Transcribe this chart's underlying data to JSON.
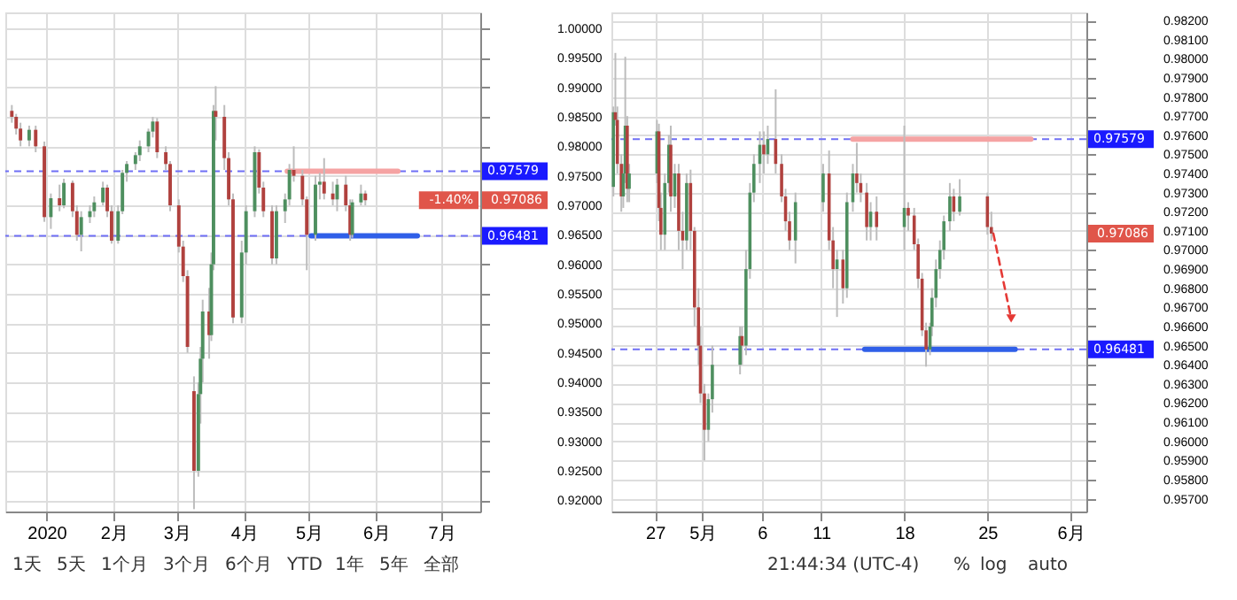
{
  "chart_data": [
    {
      "type": "candlestick",
      "x": [
        "2019-12-16",
        "2019-12-18",
        "2019-12-20",
        "2019-12-24",
        "2019-12-27",
        "2019-12-31",
        "2020-01-03",
        "2020-01-07",
        "2020-01-09",
        "2020-01-13",
        "2020-01-15",
        "2020-01-17",
        "2020-01-21",
        "2020-01-23",
        "2020-01-27",
        "2020-01-29",
        "2020-01-31",
        "2020-02-03",
        "2020-02-05",
        "2020-02-07",
        "2020-02-11",
        "2020-02-13",
        "2020-02-17",
        "2020-02-19",
        "2020-02-21",
        "2020-02-25",
        "2020-02-27",
        "2020-03-02",
        "2020-03-04",
        "2020-03-06",
        "2020-03-09",
        "2020-03-11",
        "2020-03-12",
        "2020-03-13",
        "2020-03-16",
        "2020-03-17",
        "2020-03-18",
        "2020-03-19",
        "2020-03-23",
        "2020-03-25",
        "2020-03-27",
        "2020-03-31",
        "2020-04-02",
        "2020-04-06",
        "2020-04-08",
        "2020-04-10",
        "2020-04-14",
        "2020-04-16",
        "2020-04-20",
        "2020-04-22",
        "2020-04-24",
        "2020-04-28",
        "2020-04-30",
        "2020-05-04",
        "2020-05-06",
        "2020-05-08",
        "2020-05-12",
        "2020-05-14",
        "2020-05-18",
        "2020-05-20",
        "2020-05-21",
        "2020-05-25",
        "2020-05-27"
      ],
      "ohlc": [
        [
          0.986,
          0.987,
          0.984,
          0.985
        ],
        [
          0.985,
          0.9855,
          0.982,
          0.983
        ],
        [
          0.983,
          0.984,
          0.98,
          0.981
        ],
        [
          0.981,
          0.9835,
          0.98,
          0.9828
        ],
        [
          0.9828,
          0.9835,
          0.979,
          0.98
        ],
        [
          0.98,
          0.9808,
          0.9672,
          0.968
        ],
        [
          0.968,
          0.972,
          0.966,
          0.9712
        ],
        [
          0.9712,
          0.9735,
          0.969,
          0.97
        ],
        [
          0.97,
          0.9745,
          0.9695,
          0.9738
        ],
        [
          0.9738,
          0.9742,
          0.968,
          0.969
        ],
        [
          0.969,
          0.97,
          0.964,
          0.965
        ],
        [
          0.965,
          0.969,
          0.9622,
          0.968
        ],
        [
          0.968,
          0.97,
          0.967,
          0.969
        ],
        [
          0.969,
          0.9715,
          0.968,
          0.9705
        ],
        [
          0.9705,
          0.974,
          0.97,
          0.973
        ],
        [
          0.973,
          0.9735,
          0.968,
          0.969
        ],
        [
          0.969,
          0.97,
          0.9635,
          0.964
        ],
        [
          0.964,
          0.97,
          0.9635,
          0.969
        ],
        [
          0.969,
          0.976,
          0.9685,
          0.9755
        ],
        [
          0.9755,
          0.9775,
          0.974,
          0.977
        ],
        [
          0.977,
          0.979,
          0.976,
          0.9785
        ],
        [
          0.9785,
          0.981,
          0.9775,
          0.98
        ],
        [
          0.98,
          0.983,
          0.979,
          0.9825
        ],
        [
          0.9825,
          0.985,
          0.9815,
          0.9842
        ],
        [
          0.9842,
          0.9848,
          0.978,
          0.979
        ],
        [
          0.979,
          0.98,
          0.976,
          0.977
        ],
        [
          0.977,
          0.9775,
          0.969,
          0.97
        ],
        [
          0.97,
          0.971,
          0.962,
          0.963
        ],
        [
          0.963,
          0.964,
          0.957,
          0.958
        ],
        [
          0.958,
          0.959,
          0.945,
          0.946
        ],
        [
          0.9385,
          0.941,
          0.9185,
          0.925
        ],
        [
          0.925,
          0.94,
          0.924,
          0.938
        ],
        [
          0.938,
          0.946,
          0.933,
          0.944
        ],
        [
          0.944,
          0.954,
          0.94,
          0.952
        ],
        [
          0.952,
          0.956,
          0.944,
          0.948
        ],
        [
          0.948,
          0.962,
          0.947,
          0.96
        ],
        [
          0.96,
          0.987,
          0.959,
          0.986
        ],
        [
          0.986,
          0.9902,
          0.981,
          0.985
        ],
        [
          0.985,
          0.987,
          0.976,
          0.978
        ],
        [
          0.978,
          0.979,
          0.97,
          0.971
        ],
        [
          0.971,
          0.972,
          0.95,
          0.951
        ],
        [
          0.951,
          0.964,
          0.95,
          0.962
        ],
        [
          0.962,
          0.97,
          0.96,
          0.969
        ],
        [
          0.969,
          0.98,
          0.968,
          0.979
        ],
        [
          0.979,
          0.9795,
          0.972,
          0.973
        ],
        [
          0.973,
          0.974,
          0.968,
          0.969
        ],
        [
          0.969,
          0.97,
          0.96,
          0.961
        ],
        [
          0.961,
          0.97,
          0.96,
          0.969
        ],
        [
          0.969,
          0.972,
          0.967,
          0.971
        ],
        [
          0.971,
          0.977,
          0.97,
          0.976
        ],
        [
          0.976,
          0.98,
          0.974,
          0.975
        ],
        [
          0.975,
          0.976,
          0.97,
          0.971
        ],
        [
          0.971,
          0.9715,
          0.959,
          0.965
        ],
        [
          0.965,
          0.975,
          0.964,
          0.9735
        ],
        [
          0.9735,
          0.9755,
          0.971,
          0.974
        ],
        [
          0.974,
          0.978,
          0.971,
          0.972
        ],
        [
          0.972,
          0.974,
          0.97,
          0.971
        ],
        [
          0.971,
          0.9745,
          0.969,
          0.9735
        ],
        [
          0.9735,
          0.975,
          0.969,
          0.97
        ],
        [
          0.97,
          0.971,
          0.964,
          0.965
        ],
        [
          0.965,
          0.971,
          0.9645,
          0.9705
        ],
        [
          0.9705,
          0.9735,
          0.97,
          0.972
        ],
        [
          0.972,
          0.9725,
          0.97,
          0.97086
        ]
      ],
      "xlim": [
        "2019-12-13",
        "2020-07-19"
      ],
      "xticks": [
        {
          "value": "2020-01-01",
          "label": "2020"
        },
        {
          "value": "2020-02-01",
          "label": "2月"
        },
        {
          "value": "2020-03-01",
          "label": "3月"
        },
        {
          "value": "2020-04-01",
          "label": "4月"
        },
        {
          "value": "2020-05-01",
          "label": "5月"
        },
        {
          "value": "2020-06-01",
          "label": "6月"
        },
        {
          "value": "2020-07-01",
          "label": "7月"
        }
      ],
      "ylim": [
        0.9181,
        1.0027
      ],
      "yticks": [
        {
          "value": 0.92,
          "label": "0.92000"
        },
        {
          "value": 0.925,
          "label": "0.92500"
        },
        {
          "value": 0.93,
          "label": "0.93000"
        },
        {
          "value": 0.935,
          "label": "0.93500"
        },
        {
          "value": 0.94,
          "label": "0.94000"
        },
        {
          "value": 0.945,
          "label": "0.94500"
        },
        {
          "value": 0.95,
          "label": "0.95000"
        },
        {
          "value": 0.955,
          "label": "0.95500"
        },
        {
          "value": 0.96,
          "label": "0.96000"
        },
        {
          "value": 0.965,
          "label": "0.96500"
        },
        {
          "value": 0.97,
          "label": "0.97000"
        },
        {
          "value": 0.975,
          "label": "0.97500"
        },
        {
          "value": 0.98,
          "label": "0.98000"
        },
        {
          "value": 0.985,
          "label": "0.98500"
        },
        {
          "value": 0.99,
          "label": "0.99000"
        },
        {
          "value": 0.995,
          "label": "0.99500"
        },
        {
          "value": 1.0,
          "label": "1.00000"
        }
      ],
      "grid": true,
      "ref_lines": [
        {
          "axis": "y",
          "value": 0.97579,
          "label": "0.97579",
          "color": "#6f6ff5",
          "line_style": "dashed"
        },
        {
          "axis": "y",
          "value": 0.96481,
          "label": "0.96481",
          "color": "#6f6ff5",
          "line_style": "dashed"
        }
      ],
      "series": [
        {
          "type": "line",
          "x": [
            "2020-04-21",
            "2020-06-11"
          ],
          "values": [
            0.97579,
            0.97579
          ],
          "color": "#f5a3a3"
        },
        {
          "type": "line",
          "x": [
            "2020-05-02",
            "2020-06-20"
          ],
          "values": [
            0.96481,
            0.96481
          ],
          "color": "#2f5fe8"
        }
      ],
      "annotations": [
        "-1.40%",
        "0.97086",
        "1天",
        "5天",
        "1个月",
        "3个月",
        "6个月",
        "YTD",
        "1年",
        "5年",
        "全部"
      ]
    },
    {
      "type": "candlestick",
      "x": [
        "2020-04-23T12:00",
        "2020-04-23T16:00",
        "2020-04-23T20:00",
        "2020-04-24T04:00",
        "2020-04-24T08:00",
        "2020-04-24T12:00",
        "2020-04-24T16:00",
        "2020-04-24T20:00",
        "2020-04-27T04:00",
        "2020-04-27T08:00",
        "2020-04-27T12:00",
        "2020-04-27T20:00",
        "2020-04-28T04:00",
        "2020-04-28T08:00",
        "2020-04-28T16:00",
        "2020-04-29T00:00",
        "2020-04-29T08:00",
        "2020-04-29T16:00",
        "2020-04-30T00:00",
        "2020-04-30T08:00",
        "2020-04-30T16:00",
        "2020-04-30T20:00",
        "2020-05-01T04:00",
        "2020-05-01T12:00",
        "2020-05-01T20:00",
        "2020-05-04T04:00",
        "2020-05-04T08:00",
        "2020-05-04T16:00",
        "2020-05-05T00:00",
        "2020-05-05T08:00",
        "2020-05-05T20:00",
        "2020-05-06T04:00",
        "2020-05-06T12:00",
        "2020-05-07T04:00",
        "2020-05-07T16:00",
        "2020-05-08T00:00",
        "2020-05-08T08:00",
        "2020-05-08T20:00",
        "2020-05-11T04:00",
        "2020-05-11T16:00",
        "2020-05-12T00:00",
        "2020-05-12T08:00",
        "2020-05-12T20:00",
        "2020-05-13T04:00",
        "2020-05-13T16:00",
        "2020-05-14T00:00",
        "2020-05-14T08:00",
        "2020-05-14T20:00",
        "2020-05-15T04:00",
        "2020-05-15T16:00",
        "2020-05-18T00:00",
        "2020-05-18T08:00",
        "2020-05-18T20:00",
        "2020-05-19T04:00",
        "2020-05-19T12:00",
        "2020-05-19T20:00",
        "2020-05-20T04:00",
        "2020-05-20T08:00",
        "2020-05-20T16:00",
        "2020-05-21T00:00",
        "2020-05-21T08:00",
        "2020-05-21T20:00",
        "2020-05-22T04:00",
        "2020-05-22T16:00",
        "2020-05-25T00:00",
        "2020-05-25T08:00"
      ],
      "ohlc": [
        [
          0.9733,
          0.9775,
          0.9728,
          0.9772
        ],
        [
          0.9772,
          0.9803,
          0.9765,
          0.9768
        ],
        [
          0.9768,
          0.9775,
          0.974,
          0.9745
        ],
        [
          0.9745,
          0.975,
          0.972,
          0.9728
        ],
        [
          0.9728,
          0.9745,
          0.9722,
          0.974
        ],
        [
          0.974,
          0.9801,
          0.9735,
          0.9765
        ],
        [
          0.9765,
          0.977,
          0.9725,
          0.9732
        ],
        [
          0.9732,
          0.9745,
          0.9725,
          0.974
        ],
        [
          0.974,
          0.9768,
          0.9735,
          0.9762
        ],
        [
          0.9762,
          0.9766,
          0.9715,
          0.9722
        ],
        [
          0.9722,
          0.973,
          0.97,
          0.9708
        ],
        [
          0.9708,
          0.974,
          0.97,
          0.9735
        ],
        [
          0.9735,
          0.976,
          0.973,
          0.9755
        ],
        [
          0.9755,
          0.9765,
          0.972,
          0.9728
        ],
        [
          0.9728,
          0.9745,
          0.9722,
          0.974
        ],
        [
          0.974,
          0.9745,
          0.97,
          0.971
        ],
        [
          0.971,
          0.972,
          0.969,
          0.9705
        ],
        [
          0.9705,
          0.974,
          0.97,
          0.9735
        ],
        [
          0.9735,
          0.9742,
          0.97,
          0.971
        ],
        [
          0.971,
          0.9712,
          0.966,
          0.967
        ],
        [
          0.967,
          0.968,
          0.964,
          0.965
        ],
        [
          0.965,
          0.966,
          0.962,
          0.9625
        ],
        [
          0.9625,
          0.963,
          0.959,
          0.9606
        ],
        [
          0.9606,
          0.9625,
          0.96,
          0.9622
        ],
        [
          0.9622,
          0.965,
          0.9615,
          0.964
        ],
        [
          0.964,
          0.966,
          0.9635,
          0.9655
        ],
        [
          0.9655,
          0.966,
          0.964,
          0.965
        ],
        [
          0.965,
          0.97,
          0.9645,
          0.969
        ],
        [
          0.969,
          0.9735,
          0.9685,
          0.973
        ],
        [
          0.973,
          0.975,
          0.9725,
          0.9745
        ],
        [
          0.9745,
          0.9762,
          0.9735,
          0.9755
        ],
        [
          0.9755,
          0.9762,
          0.974,
          0.975
        ],
        [
          0.975,
          0.9765,
          0.9745,
          0.9758
        ],
        [
          0.9758,
          0.9784,
          0.974,
          0.9745
        ],
        [
          0.9745,
          0.975,
          0.9725,
          0.9728
        ],
        [
          0.9728,
          0.9732,
          0.971,
          0.9715
        ],
        [
          0.9715,
          0.972,
          0.97,
          0.9705
        ],
        [
          0.9705,
          0.973,
          0.9693,
          0.9725
        ],
        [
          0.9725,
          0.9745,
          0.972,
          0.974
        ],
        [
          0.974,
          0.9752,
          0.97,
          0.9705
        ],
        [
          0.9705,
          0.9712,
          0.968,
          0.969
        ],
        [
          0.969,
          0.97,
          0.9665,
          0.9695
        ],
        [
          0.9695,
          0.97,
          0.9672,
          0.968
        ],
        [
          0.968,
          0.973,
          0.9675,
          0.9725
        ],
        [
          0.9725,
          0.9745,
          0.972,
          0.974
        ],
        [
          0.974,
          0.9756,
          0.973,
          0.9735
        ],
        [
          0.9735,
          0.974,
          0.9725,
          0.973
        ],
        [
          0.973,
          0.9735,
          0.9705,
          0.9712
        ],
        [
          0.9712,
          0.9725,
          0.9705,
          0.972
        ],
        [
          0.972,
          0.9728,
          0.9705,
          0.9712
        ],
        [
          0.9712,
          0.9765,
          0.97,
          0.9722
        ],
        [
          0.9722,
          0.9725,
          0.971,
          0.9718
        ],
        [
          0.9718,
          0.9722,
          0.97,
          0.9703
        ],
        [
          0.9703,
          0.9706,
          0.968,
          0.9685
        ],
        [
          0.9685,
          0.9688,
          0.9655,
          0.9658
        ],
        [
          0.9658,
          0.9662,
          0.9639,
          0.9648
        ],
        [
          0.9648,
          0.9662,
          0.9645,
          0.966
        ],
        [
          0.966,
          0.968,
          0.9655,
          0.9675
        ],
        [
          0.9675,
          0.9695,
          0.967,
          0.969
        ],
        [
          0.969,
          0.9705,
          0.9685,
          0.97
        ],
        [
          0.97,
          0.9718,
          0.9695,
          0.9715
        ],
        [
          0.9715,
          0.9735,
          0.971,
          0.9728
        ],
        [
          0.9728,
          0.9732,
          0.9715,
          0.972
        ],
        [
          0.972,
          0.9737,
          0.9718,
          0.9728
        ],
        [
          0.9728,
          0.973,
          0.9708,
          0.9712
        ],
        [
          0.9712,
          0.972,
          0.9705,
          0.97086
        ]
      ],
      "xlim": [
        "2020-04-23T08:00",
        "2020-06-02T08:00"
      ],
      "xticks": [
        {
          "value": "2020-04-27",
          "label": "27"
        },
        {
          "value": "2020-05-01",
          "label": "5月"
        },
        {
          "value": "2020-05-06",
          "label": "6"
        },
        {
          "value": "2020-05-11",
          "label": "11"
        },
        {
          "value": "2020-05-18",
          "label": "18"
        },
        {
          "value": "2020-05-25",
          "label": "25"
        },
        {
          "value": "2020-06-01",
          "label": "6月"
        }
      ],
      "ylim": [
        0.95633,
        0.98242
      ],
      "yticks": [
        {
          "value": 0.957,
          "label": "0.95700"
        },
        {
          "value": 0.958,
          "label": "0.95800"
        },
        {
          "value": 0.959,
          "label": "0.95900"
        },
        {
          "value": 0.96,
          "label": "0.96000"
        },
        {
          "value": 0.961,
          "label": "0.96100"
        },
        {
          "value": 0.962,
          "label": "0.96200"
        },
        {
          "value": 0.963,
          "label": "0.96300"
        },
        {
          "value": 0.964,
          "label": "0.96400"
        },
        {
          "value": 0.965,
          "label": "0.96500"
        },
        {
          "value": 0.966,
          "label": "0.96600"
        },
        {
          "value": 0.967,
          "label": "0.96700"
        },
        {
          "value": 0.968,
          "label": "0.96800"
        },
        {
          "value": 0.969,
          "label": "0.96900"
        },
        {
          "value": 0.97,
          "label": "0.97000"
        },
        {
          "value": 0.971,
          "label": "0.97100"
        },
        {
          "value": 0.972,
          "label": "0.97200"
        },
        {
          "value": 0.973,
          "label": "0.97300"
        },
        {
          "value": 0.974,
          "label": "0.97400"
        },
        {
          "value": 0.975,
          "label": "0.97500"
        },
        {
          "value": 0.976,
          "label": "0.97600"
        },
        {
          "value": 0.977,
          "label": "0.97700"
        },
        {
          "value": 0.978,
          "label": "0.97800"
        },
        {
          "value": 0.979,
          "label": "0.97900"
        },
        {
          "value": 0.98,
          "label": "0.98000"
        },
        {
          "value": 0.981,
          "label": "0.98100"
        },
        {
          "value": 0.982,
          "label": "0.98200"
        }
      ],
      "grid": true,
      "ref_lines": [
        {
          "axis": "y",
          "value": 0.97579,
          "label": "0.97579",
          "color": "#6f6ff5",
          "line_style": "dashed"
        },
        {
          "axis": "y",
          "value": 0.96481,
          "label": "0.96481",
          "color": "#6f6ff5",
          "line_style": "dashed"
        }
      ],
      "series": [
        {
          "type": "line",
          "x": [
            "2020-05-13T16:00",
            "2020-05-28T16:00"
          ],
          "values": [
            0.97579,
            0.97579
          ],
          "color": "#f5a3a3"
        },
        {
          "type": "line",
          "x": [
            "2020-05-14T16:00",
            "2020-05-27T08:00"
          ],
          "values": [
            0.96481,
            0.96481
          ],
          "color": "#2f5fe8"
        },
        {
          "type": "line",
          "x": [
            "2020-05-25T12:00",
            "2020-05-27T00:00"
          ],
          "values": [
            0.97086,
            0.96642
          ],
          "color": "#e53935",
          "line_style": "dashed",
          "marker": "triangle"
        }
      ],
      "annotations": [
        "0.97086",
        "21:44:34 (UTC-4)",
        "%",
        "log",
        "auto"
      ]
    }
  ]
}
